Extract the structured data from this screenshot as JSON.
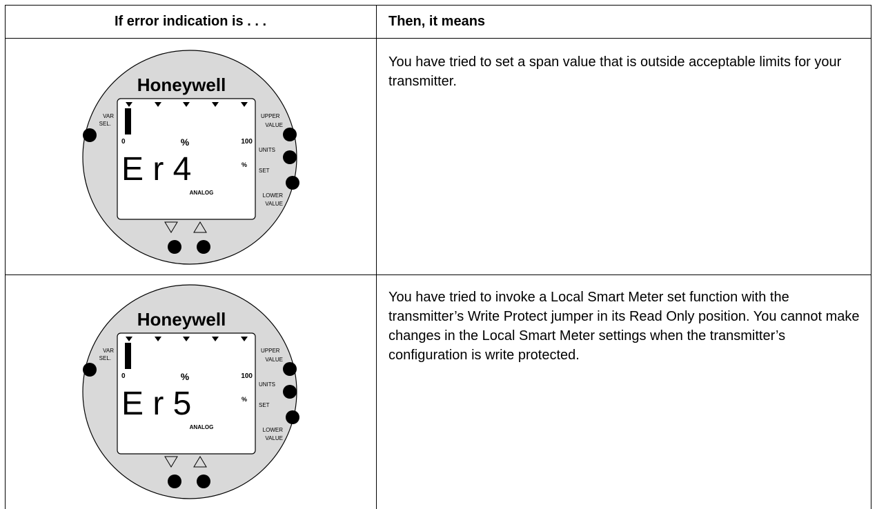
{
  "table": {
    "header": [
      "If error indication is . . .",
      "Then, it means"
    ],
    "rows": [
      {
        "meter": {
          "brand": "Honeywell",
          "left_label": [
            "VAR",
            "SEL."
          ],
          "upper_label": [
            "UPPER",
            "VALUE"
          ],
          "units_label": "UNITS",
          "set_label": "SET",
          "lower_label": [
            "LOWER",
            "VALUE"
          ],
          "scale_min": "0",
          "scale_unit": "%",
          "scale_max": "100",
          "reading": "E r 4",
          "reading_unit": "%",
          "mode": "ANALOG"
        },
        "meaning": "You have tried to set a span value that is outside acceptable limits for your transmitter."
      },
      {
        "meter": {
          "brand": "Honeywell",
          "left_label": [
            "VAR",
            "SEL."
          ],
          "upper_label": [
            "UPPER",
            "VALUE"
          ],
          "units_label": "UNITS",
          "set_label": "SET",
          "lower_label": [
            "LOWER",
            "VALUE"
          ],
          "scale_min": "0",
          "scale_unit": "%",
          "scale_max": "100",
          "reading": "E r 5",
          "reading_unit": "%",
          "mode": "ANALOG"
        },
        "meaning": "You have tried to invoke a Local Smart Meter set function with the transmitter’s Write Protect jumper in its Read Only position. You cannot make changes in the Local Smart Meter settings when the transmitter’s configuration is write protected."
      }
    ]
  }
}
